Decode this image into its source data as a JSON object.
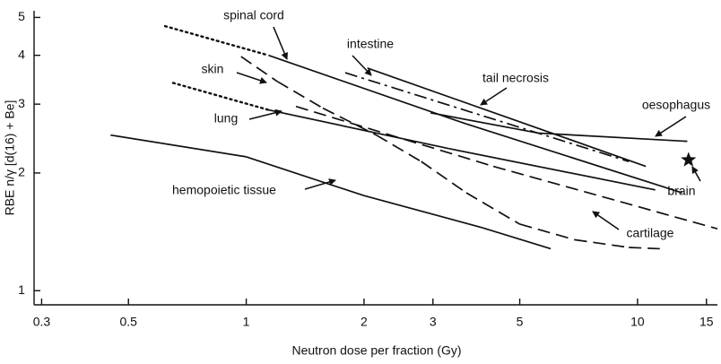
{
  "chart_data": {
    "type": "line",
    "xlabel": "Neutron dose per fraction (Gy)",
    "ylabel": "RBE n/γ [d(16) + Be]",
    "log_x": true,
    "log_y": true,
    "xlim": [
      0.29,
      16
    ],
    "ylim": [
      0.92,
      5.2
    ],
    "xticks": [
      0.3,
      0.5,
      1,
      2,
      3,
      5,
      10,
      15
    ],
    "yticks": [
      1,
      2,
      3,
      4,
      5
    ],
    "color": "#111111",
    "series": [
      {
        "name": "spinal cord",
        "x": [
          0.62,
          1.14,
          3.65,
          13.0
        ],
        "values": [
          4.75,
          4.0,
          2.67,
          1.78
        ],
        "segment_styles": [
          "dotted",
          "solid",
          "solid"
        ]
      },
      {
        "name": "intestine",
        "x": [
          1.79,
          9.5
        ],
        "values": [
          3.61,
          2.14
        ],
        "segment_styles": [
          "dashdot"
        ]
      },
      {
        "name": "skin",
        "x": [
          0.97,
          1.2,
          1.57,
          2.15,
          2.8,
          3.65,
          5.0,
          6.9,
          9.5,
          11.4
        ],
        "values": [
          3.97,
          3.43,
          2.93,
          2.5,
          2.14,
          1.78,
          1.48,
          1.35,
          1.29,
          1.28
        ],
        "segment_styles": [
          "dashed",
          "dashed",
          "dashed",
          "dashed",
          "dashed",
          "dashed",
          "dashed",
          "dashed",
          "dashed"
        ]
      },
      {
        "name": "tail necrosis",
        "x": [
          2.04,
          10.5
        ],
        "values": [
          3.71,
          2.08
        ],
        "segment_styles": [
          "solid"
        ]
      },
      {
        "name": "oesophagus",
        "x": [
          2.96,
          5.58,
          13.4
        ],
        "values": [
          2.85,
          2.53,
          2.41
        ],
        "segment_styles": [
          "solid",
          "solid"
        ]
      },
      {
        "name": "lung",
        "x": [
          0.65,
          1.14,
          3.29,
          11.1
        ],
        "values": [
          3.4,
          2.9,
          2.31,
          1.81
        ],
        "segment_styles": [
          "dotted",
          "solid",
          "solid"
        ]
      },
      {
        "name": "cartilage",
        "x": [
          1.34,
          4.28,
          16.0
        ],
        "values": [
          2.96,
          2.08,
          1.44
        ],
        "segment_styles": [
          "dashed",
          "dashed"
        ]
      },
      {
        "name": "hemopoietic tissue",
        "x": [
          0.45,
          1,
          2,
          4,
          6
        ],
        "values": [
          2.5,
          2.2,
          1.75,
          1.45,
          1.28
        ],
        "segment_styles": [
          "solid",
          "solid",
          "solid",
          "solid"
        ]
      },
      {
        "name": "brain",
        "x": [
          13.5
        ],
        "values": [
          2.16
        ],
        "marker": "star"
      }
    ]
  }
}
